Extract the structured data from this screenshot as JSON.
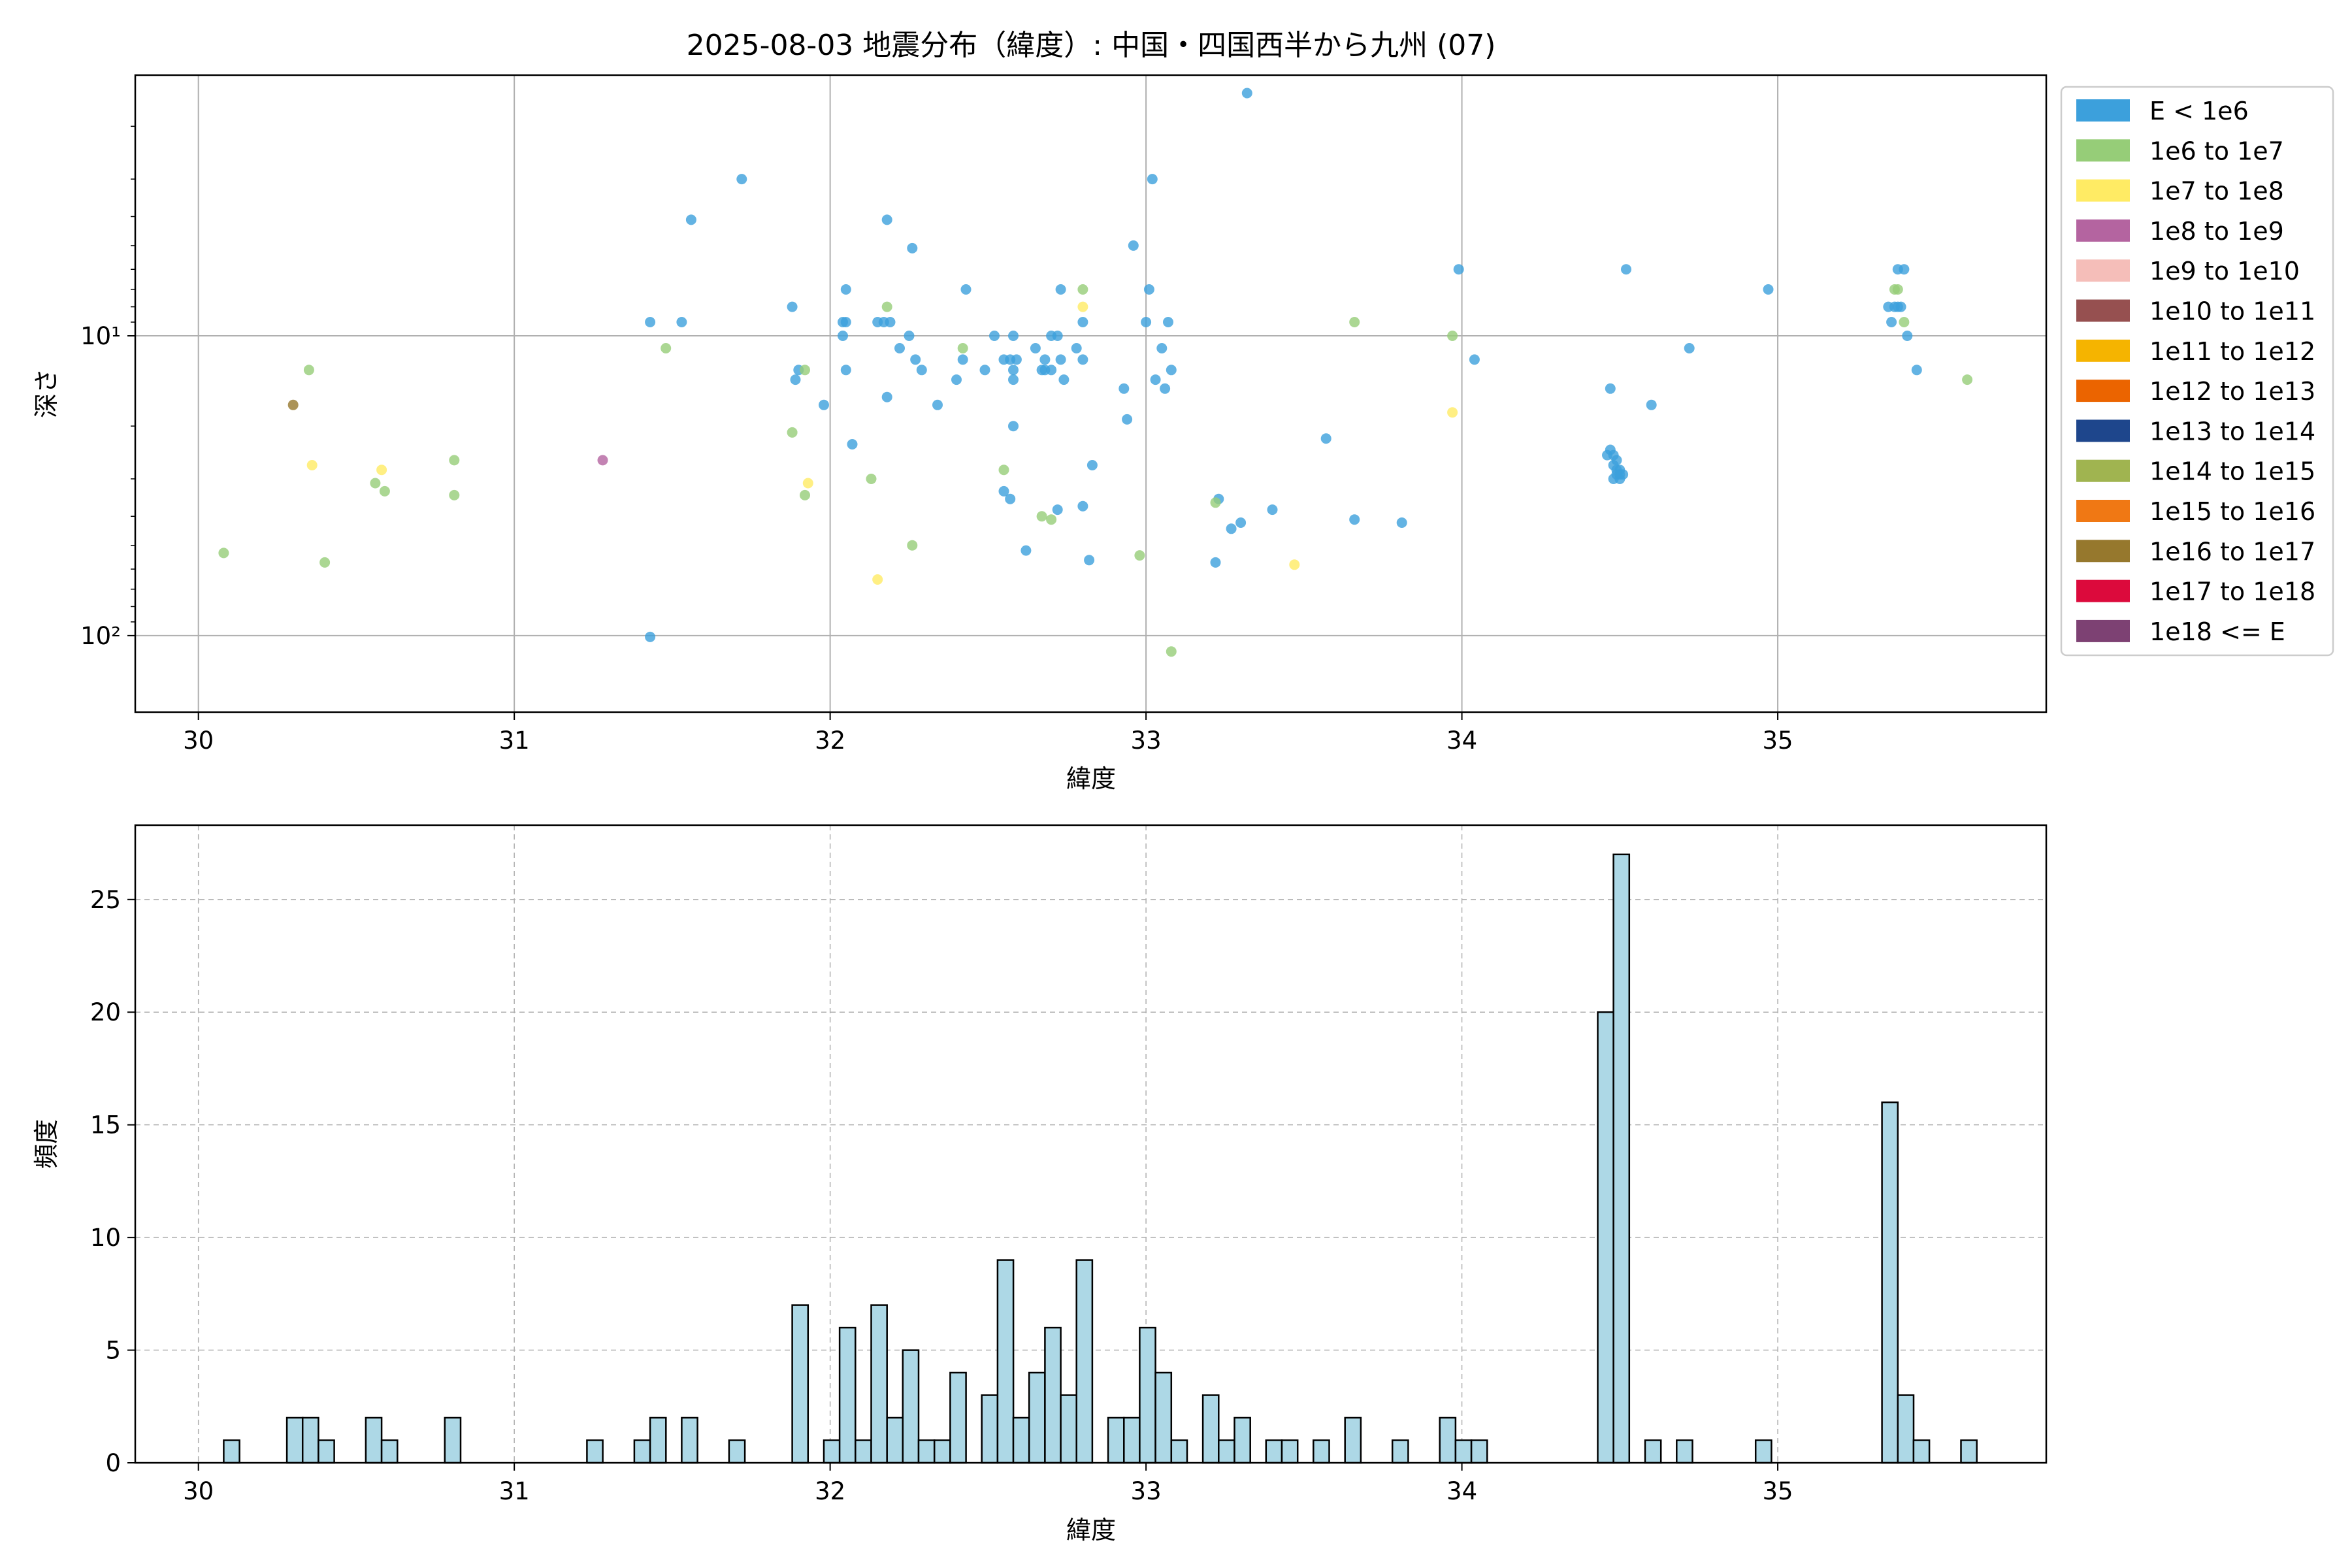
{
  "figure": {
    "title": "2025-08-03 地震分布（緯度）: 中国・四国西半から九州 (07)"
  },
  "colors": {
    "E < 1e6": "#3ca0dc",
    "1e6 to 1e7": "#96cd78",
    "1e7 to 1e8": "#ffeb64",
    "1e8 to 1e9": "#b464a0",
    "1e9 to 1e10": "#f5beb9",
    "1e10 to 1e11": "#965050",
    "1e11 to 1e12": "#f5b400",
    "1e12 to 1e13": "#eb6400",
    "1e13 to 1e14": "#1e468c",
    "1e14 to 1e15": "#a0b450",
    "1e15 to 1e16": "#f07814",
    "1e16 to 1e17": "#96782d",
    "1e17 to 1e18": "#dc0a3c",
    "1e18 <= E": "#7d4173",
    "hist_fill": "#add8e6"
  },
  "chart_data": [
    {
      "type": "scatter",
      "xlabel": "緯度",
      "ylabel": "深さ",
      "xlim": [
        29.8,
        35.85
      ],
      "ylim_inverted_log": [
        1.35,
        180
      ],
      "yscale": "log (inverted)",
      "x_ticks": [
        30,
        31,
        32,
        33,
        34,
        35
      ],
      "y_ticks": [
        {
          "value": 10,
          "label": "10¹"
        },
        {
          "value": 100,
          "label": "10²"
        }
      ],
      "grid": true,
      "legend": {
        "placement": "outside-right",
        "entries": [
          "E < 1e6",
          "1e6 to 1e7",
          "1e7 to 1e8",
          "1e8 to 1e9",
          "1e9 to 1e10",
          "1e10 to 1e11",
          "1e11 to 1e12",
          "1e12 to 1e13",
          "1e13 to 1e14",
          "1e14 to 1e15",
          "1e15 to 1e16",
          "1e16 to 1e17",
          "1e17 to 1e18",
          "1e18 <= E"
        ]
      },
      "series": [
        {
          "name": "E < 1e6",
          "points": [
            [
              31.43,
              9
            ],
            [
              31.53,
              9
            ],
            [
              31.56,
              4.1
            ],
            [
              31.72,
              3
            ],
            [
              31.43,
              101
            ],
            [
              31.88,
              8
            ],
            [
              31.89,
              14
            ],
            [
              31.9,
              13
            ],
            [
              32.04,
              9
            ],
            [
              32.04,
              10
            ],
            [
              32.05,
              7
            ],
            [
              32.05,
              9
            ],
            [
              32.05,
              13
            ],
            [
              31.98,
              17
            ],
            [
              32.07,
              23
            ],
            [
              32.15,
              9
            ],
            [
              32.17,
              9
            ],
            [
              32.19,
              9
            ],
            [
              32.18,
              4.1
            ],
            [
              32.18,
              16
            ],
            [
              32.22,
              11
            ],
            [
              32.25,
              10
            ],
            [
              32.26,
              5.1
            ],
            [
              32.27,
              12
            ],
            [
              32.29,
              13
            ],
            [
              32.34,
              17
            ],
            [
              32.4,
              14
            ],
            [
              32.42,
              12
            ],
            [
              32.43,
              7
            ],
            [
              32.49,
              13
            ],
            [
              32.52,
              10
            ],
            [
              32.55,
              12
            ],
            [
              32.55,
              33
            ],
            [
              32.57,
              12
            ],
            [
              32.58,
              13
            ],
            [
              32.58,
              14
            ],
            [
              32.58,
              10
            ],
            [
              32.59,
              12
            ],
            [
              32.58,
              20
            ],
            [
              32.57,
              35
            ],
            [
              32.62,
              52
            ],
            [
              32.65,
              11
            ],
            [
              32.67,
              13
            ],
            [
              32.68,
              12
            ],
            [
              32.68,
              13
            ],
            [
              32.7,
              10
            ],
            [
              32.7,
              13
            ],
            [
              32.72,
              10
            ],
            [
              32.73,
              12
            ],
            [
              32.73,
              7
            ],
            [
              32.74,
              14
            ],
            [
              32.72,
              38
            ],
            [
              32.78,
              11
            ],
            [
              32.8,
              9
            ],
            [
              32.8,
              12
            ],
            [
              32.8,
              37
            ],
            [
              32.82,
              56
            ],
            [
              32.83,
              27
            ],
            [
              32.93,
              15
            ],
            [
              32.94,
              19
            ],
            [
              32.96,
              5
            ],
            [
              33.0,
              9
            ],
            [
              33.01,
              7
            ],
            [
              33.02,
              3
            ],
            [
              33.03,
              14
            ],
            [
              33.05,
              11
            ],
            [
              33.06,
              15
            ],
            [
              33.07,
              9
            ],
            [
              33.08,
              13
            ],
            [
              33.22,
              57
            ],
            [
              33.23,
              35
            ],
            [
              33.27,
              44
            ],
            [
              33.3,
              42
            ],
            [
              33.32,
              1.55
            ],
            [
              33.4,
              38
            ],
            [
              33.57,
              22
            ],
            [
              33.66,
              41
            ],
            [
              33.81,
              42
            ],
            [
              33.99,
              6
            ],
            [
              34.04,
              12
            ],
            [
              34.47,
              15
            ],
            [
              34.46,
              25
            ],
            [
              34.47,
              24
            ],
            [
              34.48,
              25
            ],
            [
              34.49,
              26
            ],
            [
              34.48,
              27
            ],
            [
              34.49,
              28
            ],
            [
              34.5,
              28
            ],
            [
              34.49,
              29
            ],
            [
              34.5,
              29
            ],
            [
              34.48,
              30
            ],
            [
              34.5,
              30
            ],
            [
              34.51,
              29
            ],
            [
              34.52,
              6
            ],
            [
              34.6,
              17
            ],
            [
              34.72,
              11
            ],
            [
              34.97,
              7
            ],
            [
              35.35,
              8
            ],
            [
              35.36,
              9
            ],
            [
              35.37,
              8
            ],
            [
              35.38,
              6
            ],
            [
              35.38,
              8
            ],
            [
              35.39,
              8
            ],
            [
              35.4,
              6
            ],
            [
              35.41,
              10
            ],
            [
              35.44,
              13
            ]
          ]
        },
        {
          "name": "1e6 to 1e7",
          "points": [
            [
              30.08,
              53
            ],
            [
              30.35,
              13
            ],
            [
              30.4,
              57
            ],
            [
              30.56,
              31
            ],
            [
              30.59,
              33
            ],
            [
              30.81,
              26
            ],
            [
              30.81,
              34
            ],
            [
              31.48,
              11
            ],
            [
              31.88,
              21
            ],
            [
              31.92,
              13
            ],
            [
              31.92,
              34
            ],
            [
              32.13,
              30
            ],
            [
              32.18,
              8
            ],
            [
              32.26,
              50
            ],
            [
              32.42,
              11
            ],
            [
              32.55,
              28
            ],
            [
              32.67,
              40
            ],
            [
              32.7,
              41
            ],
            [
              32.8,
              7
            ],
            [
              32.98,
              54
            ],
            [
              33.08,
              113
            ],
            [
              33.22,
              36
            ],
            [
              33.66,
              9
            ],
            [
              33.97,
              10
            ],
            [
              35.37,
              7
            ],
            [
              35.38,
              7
            ],
            [
              35.4,
              9
            ],
            [
              35.6,
              14
            ]
          ]
        },
        {
          "name": "1e7 to 1e8",
          "points": [
            [
              30.36,
              27
            ],
            [
              30.58,
              28
            ],
            [
              31.93,
              31
            ],
            [
              32.15,
              65
            ],
            [
              32.8,
              8
            ],
            [
              33.47,
              58
            ],
            [
              33.97,
              18
            ]
          ]
        },
        {
          "name": "1e8 to 1e9",
          "points": [
            [
              31.28,
              26
            ]
          ]
        },
        {
          "name": "1e16 to 1e17",
          "points": [
            [
              30.3,
              17
            ]
          ]
        }
      ]
    },
    {
      "type": "bar",
      "subtype": "histogram",
      "xlabel": "緯度",
      "ylabel": "頻度",
      "xlim": [
        29.8,
        35.85
      ],
      "ylim": [
        0,
        28.3
      ],
      "x_ticks": [
        30,
        31,
        32,
        33,
        34,
        35
      ],
      "y_ticks": [
        0,
        5,
        10,
        15,
        20,
        25
      ],
      "grid": true,
      "bin_width": 0.05,
      "bins": [
        [
          30.08,
          1
        ],
        [
          30.28,
          2
        ],
        [
          30.33,
          2
        ],
        [
          30.38,
          1
        ],
        [
          30.53,
          2
        ],
        [
          30.58,
          1
        ],
        [
          30.78,
          2
        ],
        [
          31.23,
          1
        ],
        [
          31.38,
          1
        ],
        [
          31.43,
          2
        ],
        [
          31.53,
          2
        ],
        [
          31.68,
          1
        ],
        [
          31.88,
          7
        ],
        [
          31.98,
          1
        ],
        [
          32.03,
          6
        ],
        [
          32.08,
          1
        ],
        [
          32.13,
          7
        ],
        [
          32.18,
          2
        ],
        [
          32.23,
          5
        ],
        [
          32.28,
          1
        ],
        [
          32.33,
          1
        ],
        [
          32.38,
          4
        ],
        [
          32.48,
          3
        ],
        [
          32.53,
          9
        ],
        [
          32.58,
          2
        ],
        [
          32.63,
          4
        ],
        [
          32.68,
          6
        ],
        [
          32.73,
          3
        ],
        [
          32.78,
          9
        ],
        [
          32.88,
          2
        ],
        [
          32.93,
          2
        ],
        [
          32.98,
          6
        ],
        [
          33.03,
          4
        ],
        [
          33.08,
          1
        ],
        [
          33.18,
          3
        ],
        [
          33.23,
          1
        ],
        [
          33.28,
          2
        ],
        [
          33.38,
          1
        ],
        [
          33.43,
          1
        ],
        [
          33.53,
          1
        ],
        [
          33.63,
          2
        ],
        [
          33.78,
          1
        ],
        [
          33.93,
          2
        ],
        [
          33.98,
          1
        ],
        [
          34.03,
          1
        ],
        [
          34.43,
          20
        ],
        [
          34.48,
          27
        ],
        [
          34.58,
          1
        ],
        [
          34.68,
          1
        ],
        [
          34.93,
          1
        ],
        [
          35.33,
          16
        ],
        [
          35.38,
          3
        ],
        [
          35.43,
          1
        ],
        [
          35.58,
          1
        ]
      ]
    }
  ]
}
